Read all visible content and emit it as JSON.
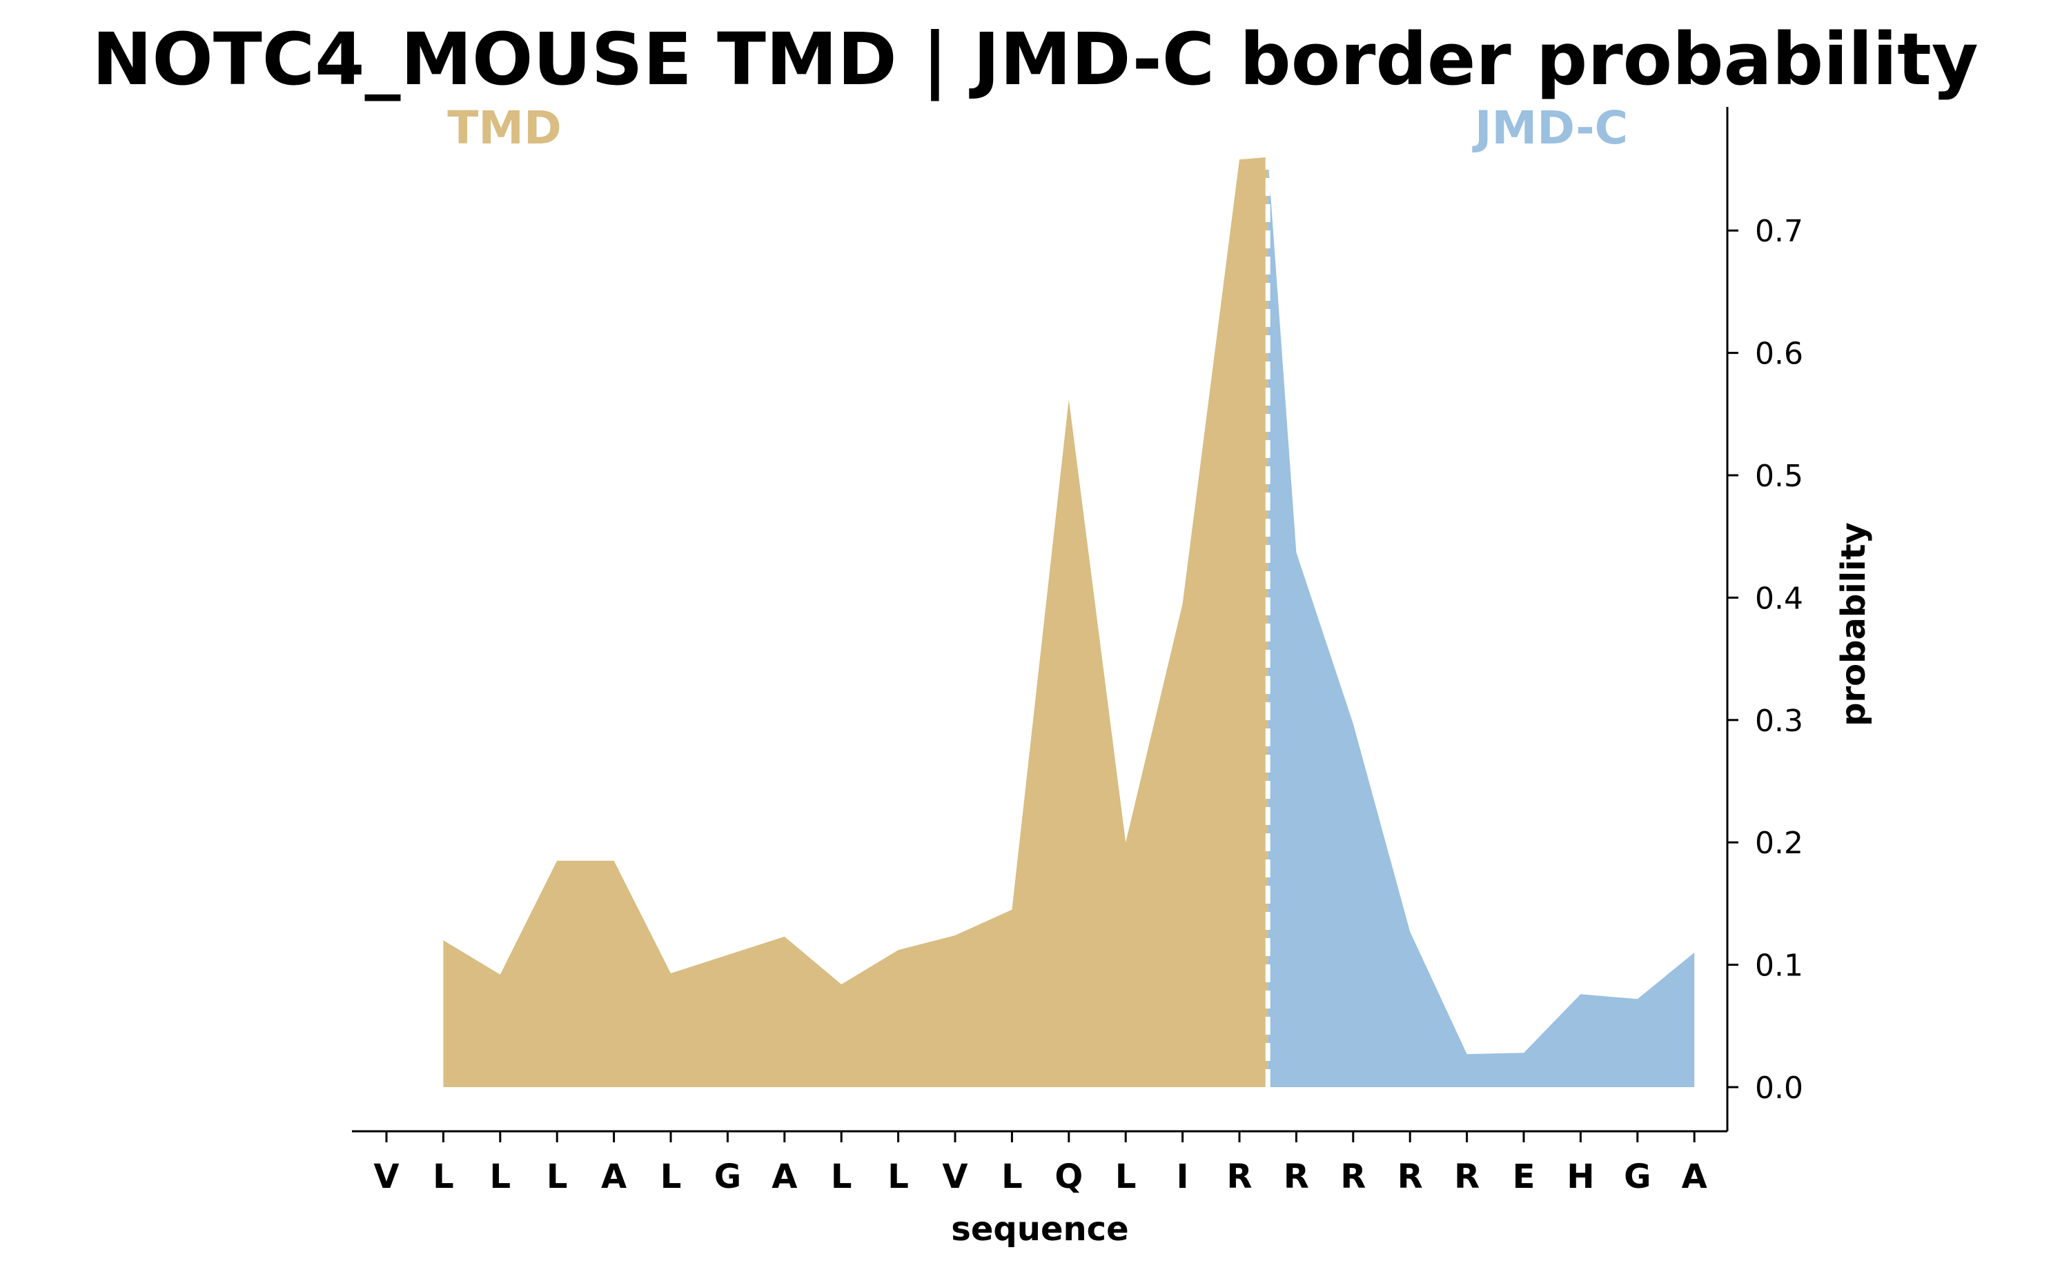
{
  "chart_data": {
    "type": "area",
    "title": "NOTC4_MOUSE TMD | JMD-C border probability",
    "xlabel": "sequence",
    "ylabel": "probability",
    "categories": [
      "V",
      "L",
      "L",
      "L",
      "A",
      "L",
      "G",
      "A",
      "L",
      "L",
      "V",
      "L",
      "Q",
      "L",
      "I",
      "R",
      "R",
      "R",
      "R",
      "R",
      "E",
      "H",
      "G",
      "A"
    ],
    "regions": [
      {
        "name": "TMD",
        "color": "#d9bd82",
        "x": [
          1,
          2,
          3,
          4,
          5,
          6,
          7,
          8,
          9,
          10,
          11,
          12,
          13,
          14,
          15,
          15.5
        ],
        "y": [
          0.12,
          0.092,
          0.185,
          0.185,
          0.093,
          0.108,
          0.123,
          0.084,
          0.112,
          0.124,
          0.145,
          0.562,
          0.2,
          0.395,
          0.758,
          0.76
        ]
      },
      {
        "name": "JMD-C",
        "color": "#9bc0e0",
        "x": [
          15.5,
          16,
          17,
          18,
          19,
          20,
          21,
          22,
          23
        ],
        "y": [
          0.76,
          0.437,
          0.297,
          0.127,
          0.027,
          0.028,
          0.076,
          0.072,
          0.11
        ]
      }
    ],
    "border_x": 15.5,
    "ylim": [
      -0.037,
      0.8
    ],
    "yticks": [
      0.0,
      0.1,
      0.2,
      0.3,
      0.4,
      0.5,
      0.6,
      0.7
    ],
    "ytick_labels": [
      "0.0",
      "0.1",
      "0.2",
      "0.3",
      "0.4",
      "0.5",
      "0.6",
      "0.7"
    ],
    "grid": false,
    "y_axis_side": "right"
  }
}
